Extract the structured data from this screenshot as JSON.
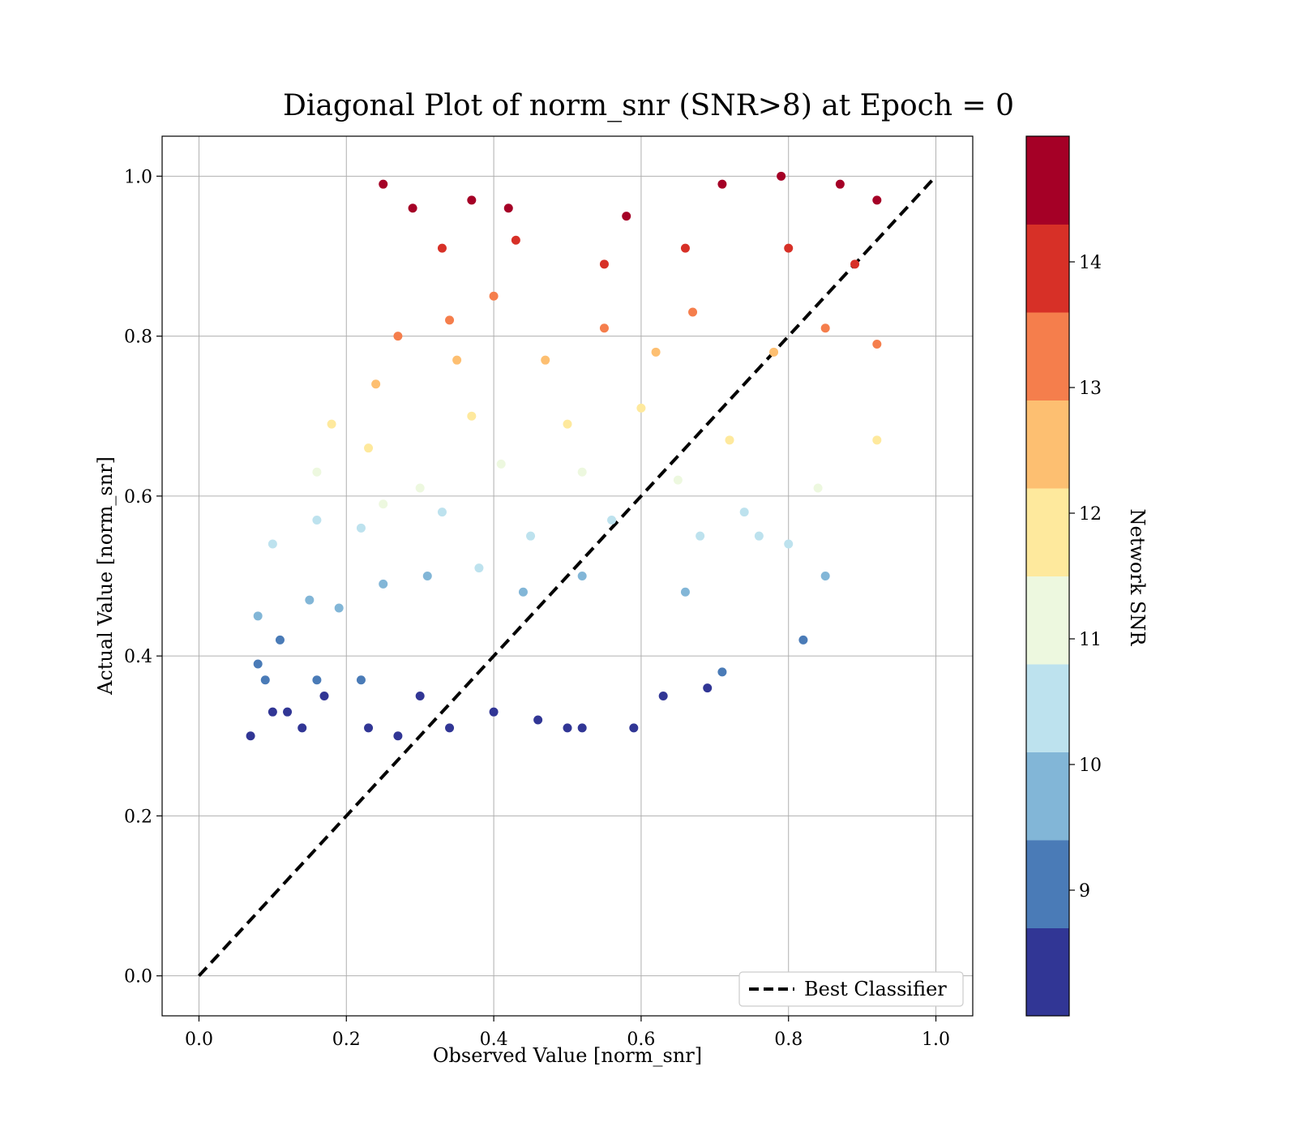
{
  "chart_data": {
    "type": "scatter",
    "title": "Diagonal Plot of norm_snr (SNR>8) at Epoch = 0",
    "xlabel": "Observed Value [norm_snr]",
    "ylabel": "Actual Value [norm_snr]",
    "xlim": [
      -0.05,
      1.05
    ],
    "ylim": [
      -0.05,
      1.05
    ],
    "xticks": [
      "0.0",
      "0.2",
      "0.4",
      "0.6",
      "0.8",
      "1.0"
    ],
    "yticks": [
      "0.0",
      "0.2",
      "0.4",
      "0.6",
      "0.8",
      "1.0"
    ],
    "grid": true,
    "legend": {
      "position": "lower-right",
      "entries": [
        "Best Classifier"
      ]
    },
    "reference_line": {
      "name": "Best Classifier",
      "x": [
        0,
        1
      ],
      "y": [
        0,
        1
      ],
      "style": "dashed",
      "color": "#000000"
    },
    "colorbar": {
      "label": "Network SNR",
      "range": [
        8.0,
        15.0
      ],
      "ticks": [
        "9",
        "10",
        "11",
        "12",
        "13",
        "14"
      ],
      "colors": [
        "#313695",
        "#4a7bb7",
        "#82b6d7",
        "#bde2ee",
        "#edf8df",
        "#fee99d",
        "#fdbf71",
        "#f57e4c",
        "#d73027",
        "#a50026"
      ]
    },
    "points_sample": [
      [
        0.07,
        0.3
      ],
      [
        0.08,
        0.39
      ],
      [
        0.09,
        0.37
      ],
      [
        0.1,
        0.33
      ],
      [
        0.12,
        0.33
      ],
      [
        0.14,
        0.31
      ],
      [
        0.16,
        0.37
      ],
      [
        0.17,
        0.35
      ],
      [
        0.22,
        0.37
      ],
      [
        0.23,
        0.31
      ],
      [
        0.27,
        0.3
      ],
      [
        0.3,
        0.35
      ],
      [
        0.34,
        0.31
      ],
      [
        0.4,
        0.33
      ],
      [
        0.46,
        0.32
      ],
      [
        0.5,
        0.31
      ],
      [
        0.52,
        0.31
      ],
      [
        0.59,
        0.31
      ],
      [
        0.63,
        0.35
      ],
      [
        0.69,
        0.36
      ],
      [
        0.08,
        0.45
      ],
      [
        0.11,
        0.42
      ],
      [
        0.15,
        0.47
      ],
      [
        0.19,
        0.46
      ],
      [
        0.25,
        0.49
      ],
      [
        0.31,
        0.5
      ],
      [
        0.38,
        0.51
      ],
      [
        0.44,
        0.48
      ],
      [
        0.52,
        0.5
      ],
      [
        0.66,
        0.48
      ],
      [
        0.71,
        0.38
      ],
      [
        0.82,
        0.42
      ],
      [
        0.85,
        0.5
      ],
      [
        0.1,
        0.54
      ],
      [
        0.16,
        0.57
      ],
      [
        0.22,
        0.56
      ],
      [
        0.33,
        0.58
      ],
      [
        0.45,
        0.55
      ],
      [
        0.56,
        0.57
      ],
      [
        0.68,
        0.55
      ],
      [
        0.76,
        0.55
      ],
      [
        0.8,
        0.54
      ],
      [
        0.16,
        0.63
      ],
      [
        0.25,
        0.59
      ],
      [
        0.3,
        0.61
      ],
      [
        0.41,
        0.64
      ],
      [
        0.52,
        0.63
      ],
      [
        0.65,
        0.62
      ],
      [
        0.74,
        0.58
      ],
      [
        0.84,
        0.61
      ],
      [
        0.18,
        0.69
      ],
      [
        0.23,
        0.66
      ],
      [
        0.37,
        0.7
      ],
      [
        0.5,
        0.69
      ],
      [
        0.6,
        0.71
      ],
      [
        0.72,
        0.67
      ],
      [
        0.92,
        0.67
      ],
      [
        0.24,
        0.74
      ],
      [
        0.35,
        0.77
      ],
      [
        0.47,
        0.77
      ],
      [
        0.62,
        0.78
      ],
      [
        0.78,
        0.78
      ],
      [
        0.92,
        0.79
      ],
      [
        0.27,
        0.8
      ],
      [
        0.34,
        0.82
      ],
      [
        0.4,
        0.85
      ],
      [
        0.55,
        0.81
      ],
      [
        0.67,
        0.83
      ],
      [
        0.85,
        0.81
      ],
      [
        0.33,
        0.91
      ],
      [
        0.43,
        0.92
      ],
      [
        0.55,
        0.89
      ],
      [
        0.66,
        0.91
      ],
      [
        0.8,
        0.91
      ],
      [
        0.89,
        0.89
      ],
      [
        0.25,
        0.99
      ],
      [
        0.29,
        0.96
      ],
      [
        0.37,
        0.97
      ],
      [
        0.42,
        0.96
      ],
      [
        0.58,
        0.95
      ],
      [
        0.71,
        0.99
      ],
      [
        0.79,
        1.0
      ],
      [
        0.87,
        0.99
      ],
      [
        0.92,
        0.97
      ]
    ]
  }
}
